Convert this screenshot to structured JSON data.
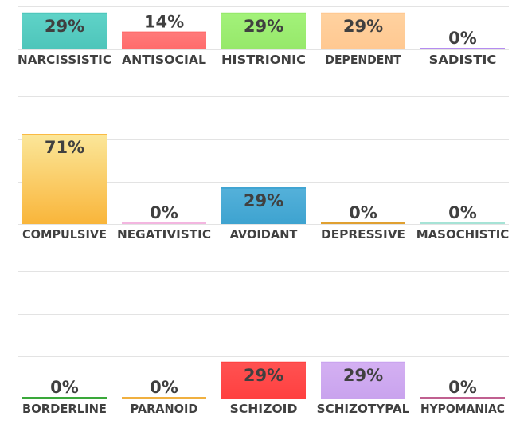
{
  "chart_data": [
    {
      "type": "bar",
      "ylim": [
        0,
        100
      ],
      "categories": [
        "NARCISSISTIC",
        "ANTISOCIAL",
        "HISTRIONIC",
        "DEPENDENT",
        "SADISTIC"
      ],
      "values": [
        29,
        14,
        29,
        29,
        0
      ],
      "value_labels": [
        "29%",
        "14%",
        "29%",
        "29%",
        "0%"
      ],
      "colors": [
        {
          "top": "#5fd3c8",
          "bottom": "#4ec5ba"
        },
        {
          "top": "#ff7b7b",
          "bottom": "#ff6b6b"
        },
        {
          "top": "#a3f27a",
          "bottom": "#96e86a"
        },
        {
          "top": "#ffd2a0",
          "bottom": "#ffc891"
        },
        {
          "top": "#b58cf0",
          "bottom": "#a070e8"
        }
      ]
    },
    {
      "type": "bar",
      "ylim": [
        0,
        100
      ],
      "categories": [
        "COMPULSIVE",
        "NEGATIVISTIC",
        "AVOIDANT",
        "DEPRESSIVE",
        "MASOCHISTIC"
      ],
      "values": [
        71,
        0,
        29,
        0,
        0
      ],
      "value_labels": [
        "71%",
        "0%",
        "29%",
        "0%",
        "0%"
      ],
      "colors": [
        {
          "top": "#fbe79a",
          "bottom": "#f9b53a"
        },
        {
          "top": "#f3b6e0",
          "bottom": "#f3b6e0"
        },
        {
          "top": "#55b1da",
          "bottom": "#3ea3d0"
        },
        {
          "top": "#e0a030",
          "bottom": "#e0a030"
        },
        {
          "top": "#a6e3d6",
          "bottom": "#a6e3d6"
        }
      ]
    },
    {
      "type": "bar",
      "ylim": [
        0,
        100
      ],
      "categories": [
        "BORDERLINE",
        "PARANOID",
        "SCHIZOID",
        "SCHIZOTYPAL",
        "HYPOMANIAC"
      ],
      "values": [
        0,
        0,
        29,
        29,
        0
      ],
      "value_labels": [
        "0%",
        "0%",
        "29%",
        "29%",
        "0%"
      ],
      "colors": [
        {
          "top": "#3aa83a",
          "bottom": "#3aa83a"
        },
        {
          "top": "#f0b040",
          "bottom": "#f0b040"
        },
        {
          "top": "#ff5252",
          "bottom": "#ff4040"
        },
        {
          "top": "#d4b0f2",
          "bottom": "#c9a3ee"
        },
        {
          "top": "#c06090",
          "bottom": "#c06090"
        }
      ]
    }
  ],
  "styles": {
    "grid_color": "#e3e3e3",
    "label_color": "#404040"
  }
}
